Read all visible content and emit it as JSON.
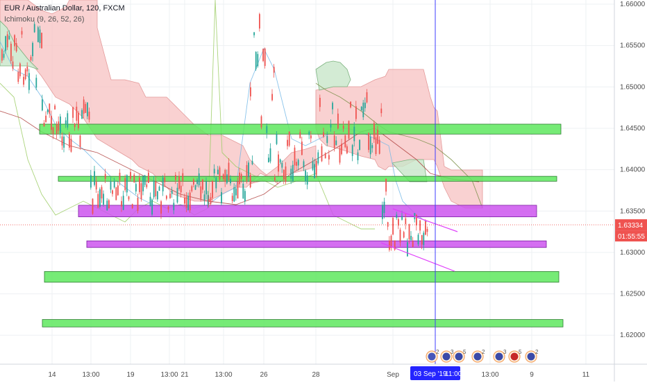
{
  "chart_data": {
    "type": "candlestick",
    "title": "EUR / Australian Dollar, 120, FXCM",
    "indicator": "Ichimoku (9, 26, 52, 26)",
    "ylim": [
      1.6165,
      1.6605
    ],
    "y_ticks": [
      "1.66000",
      "1.65500",
      "1.65000",
      "1.64500",
      "1.64000",
      "1.63500",
      "1.63000",
      "1.62500",
      "1.62000"
    ],
    "x_ticks": [
      "14",
      "13:00",
      "19",
      "13:00",
      "21",
      "13:00",
      "26",
      "28",
      "Sep",
      "13:00",
      "9",
      "11"
    ],
    "current_price_label": "1.63334",
    "current_price": 1.63334,
    "countdown_label": "01:55:55",
    "crosshair_date_label": "03 Sep '19",
    "crosshair_time_label": "11:00",
    "event_badges": [
      "2",
      "3",
      "5",
      "2",
      "3",
      "5",
      "2"
    ],
    "zones_green": [
      {
        "y_top": 1.6455,
        "y_bottom": 1.6443
      },
      {
        "y_top": 1.6392,
        "y_bottom": 1.6386
      },
      {
        "y_top": 1.6277,
        "y_bottom": 1.6264
      },
      {
        "y_top": 1.6219,
        "y_bottom": 1.621
      }
    ],
    "zones_purple": [
      {
        "y_top": 1.6357,
        "y_bottom": 1.6343
      },
      {
        "y_top": 1.6314,
        "y_bottom": 1.6306
      }
    ],
    "colors": {
      "bull": "#26a69a",
      "bear": "#ef5350",
      "zone_green": "#5ee85e",
      "zone_purple": "#cc55ee",
      "cloud_red": "#f7c2c2",
      "cloud_green": "#c8e6c9",
      "crosshair": "#3d3dff",
      "trendline": "#e040fb",
      "price_tag": "#ef5350",
      "date_tag": "#2424ff"
    }
  }
}
